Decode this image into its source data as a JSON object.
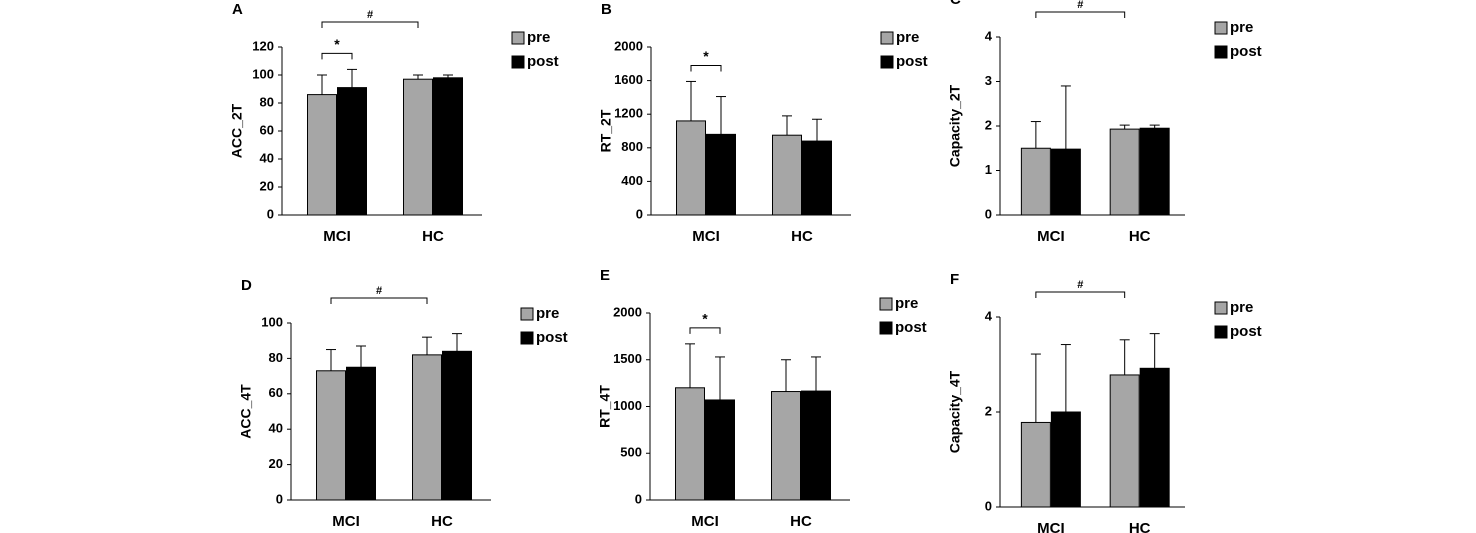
{
  "chart_data": [
    {
      "type": "bar",
      "panel": "A",
      "ylabel": "ACC_2T",
      "categories": [
        "MCI",
        "HC"
      ],
      "series": [
        {
          "name": "pre",
          "color": "#a6a6a6",
          "values": [
            86,
            97
          ],
          "errors": [
            14,
            3
          ]
        },
        {
          "name": "post",
          "color": "#000000",
          "values": [
            91,
            98
          ],
          "errors": [
            13,
            2
          ]
        }
      ],
      "ylim": [
        0,
        120
      ],
      "yticks": [
        0,
        20,
        40,
        60,
        80,
        100,
        120
      ],
      "significance": {
        "pre_post_MCI": "*",
        "MCI_HC": "#"
      }
    },
    {
      "type": "bar",
      "panel": "B",
      "ylabel": "RT_2T",
      "categories": [
        "MCI",
        "HC"
      ],
      "series": [
        {
          "name": "pre",
          "color": "#a6a6a6",
          "values": [
            1120,
            950
          ],
          "errors": [
            470,
            230
          ]
        },
        {
          "name": "post",
          "color": "#000000",
          "values": [
            960,
            880
          ],
          "errors": [
            450,
            260
          ]
        }
      ],
      "ylim": [
        0,
        2000
      ],
      "yticks": [
        0,
        400,
        800,
        1200,
        1600,
        2000
      ],
      "significance": {
        "pre_post_MCI": "*"
      }
    },
    {
      "type": "bar",
      "panel": "C",
      "ylabel": "Capacity_2T",
      "categories": [
        "MCI",
        "HC"
      ],
      "series": [
        {
          "name": "pre",
          "color": "#a6a6a6",
          "values": [
            1.5,
            1.93
          ],
          "errors": [
            0.6,
            0.09
          ]
        },
        {
          "name": "post",
          "color": "#000000",
          "values": [
            1.48,
            1.95
          ],
          "errors": [
            1.42,
            0.07
          ]
        }
      ],
      "ylim": [
        0,
        4
      ],
      "yticks": [
        0,
        1,
        2,
        3,
        4
      ],
      "significance": {
        "MCI_HC": "#"
      }
    },
    {
      "type": "bar",
      "panel": "D",
      "ylabel": "ACC_4T",
      "categories": [
        "MCI",
        "HC"
      ],
      "series": [
        {
          "name": "pre",
          "color": "#a6a6a6",
          "values": [
            73,
            82
          ],
          "errors": [
            12,
            10
          ]
        },
        {
          "name": "post",
          "color": "#000000",
          "values": [
            75,
            84
          ],
          "errors": [
            12,
            10
          ]
        }
      ],
      "ylim": [
        0,
        100
      ],
      "yticks": [
        0,
        20,
        40,
        60,
        80,
        100
      ],
      "significance": {
        "MCI_HC": "#"
      }
    },
    {
      "type": "bar",
      "panel": "E",
      "ylabel": "RT_4T",
      "categories": [
        "MCI",
        "HC"
      ],
      "series": [
        {
          "name": "pre",
          "color": "#a6a6a6",
          "values": [
            1200,
            1160
          ],
          "errors": [
            470,
            340
          ]
        },
        {
          "name": "post",
          "color": "#000000",
          "values": [
            1070,
            1165
          ],
          "errors": [
            460,
            365
          ]
        }
      ],
      "ylim": [
        0,
        2000
      ],
      "yticks": [
        0,
        500,
        1000,
        1500,
        2000
      ],
      "significance": {
        "pre_post_MCI": "*"
      }
    },
    {
      "type": "bar",
      "panel": "F",
      "ylabel": "Capacity_4T",
      "categories": [
        "MCI",
        "HC"
      ],
      "series": [
        {
          "name": "pre",
          "color": "#a6a6a6",
          "values": [
            1.78,
            2.78
          ],
          "errors": [
            1.44,
            0.74
          ]
        },
        {
          "name": "post",
          "color": "#000000",
          "values": [
            2.0,
            2.92
          ],
          "errors": [
            1.42,
            0.73
          ]
        }
      ],
      "ylim": [
        0,
        4
      ],
      "yticks": [
        0,
        2,
        4
      ],
      "significance": {
        "MCI_HC": "#"
      }
    }
  ]
}
